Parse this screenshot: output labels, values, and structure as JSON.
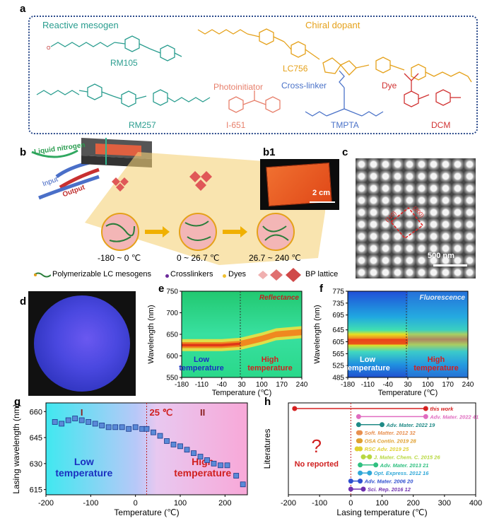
{
  "panels": {
    "a": "a",
    "b": "b",
    "b1": "b1",
    "c": "c",
    "d": "d",
    "e": "e",
    "f": "f",
    "g": "g",
    "h": "h"
  },
  "panel_a": {
    "group_reactive": "Reactive mesogen",
    "group_chiral": "Chiral dopant",
    "group_photo": "Photoinitiator",
    "group_cross": "Cross-linker",
    "group_dye": "Dye",
    "rm105": "RM105",
    "lc756": "LC756",
    "rm257": "RM257",
    "i651": "I-651",
    "tmpta": "TMPTA",
    "dcm": "DCM",
    "colors": {
      "teal": "#2a9d8f",
      "orange": "#e5a11a",
      "salmon": "#e77f6b",
      "blue": "#4a72c8",
      "red": "#d13232"
    }
  },
  "panel_b": {
    "liquid_nitrogen": "Liquid nitrogen",
    "input": "Input",
    "output": "Output",
    "t1": "-180 ~ 0 ℃",
    "t2": "0 ~ 26.7 ℃",
    "t3": "26.7 ~ 240 ℃",
    "legend_mesogens": "Polymerizable LC mesogens",
    "legend_crosslinkers": "Crosslinkers",
    "legend_dyes": "Dyes",
    "legend_bp": "BP lattice"
  },
  "panel_b1": {
    "scale": "2 cm"
  },
  "panel_c": {
    "scale": "500 nm",
    "labels": [
      "(110)",
      "(200)"
    ]
  },
  "chart_data": [
    {
      "panel": "e",
      "type": "heatmap",
      "title": "Reflectance",
      "xlabel": "Temperature (℃)",
      "ylabel": "Wavelength (nm)",
      "xlim": [
        -180,
        240
      ],
      "ylim": [
        550,
        750
      ],
      "xticks": [
        "-180",
        "-110",
        "-40",
        "30",
        "100",
        "170",
        "240"
      ],
      "yticks": [
        "550",
        "600",
        "650",
        "700",
        "750"
      ],
      "low_label": "Low\ntemperature",
      "high_label": "High\ntemperature",
      "divider_x": 25,
      "peak": [
        {
          "x": -180,
          "y": 625
        },
        {
          "x": -40,
          "y": 625
        },
        {
          "x": 25,
          "y": 628
        },
        {
          "x": 100,
          "y": 640
        },
        {
          "x": 150,
          "y": 650
        },
        {
          "x": 240,
          "y": 655
        }
      ]
    },
    {
      "panel": "f",
      "type": "heatmap",
      "title": "Fluorescence",
      "xlabel": "Temperature (℃)",
      "ylabel": "Wavelength (nm)",
      "xlim": [
        -180,
        240
      ],
      "ylim": [
        485,
        775
      ],
      "xticks": [
        "-180",
        "-110",
        "-40",
        "30",
        "100",
        "170",
        "240"
      ],
      "yticks": [
        "485",
        "525",
        "565",
        "605",
        "645",
        "695",
        "735",
        "775"
      ],
      "low_label": "Low\ntemperature",
      "high_label": "High\ntemperature",
      "divider_x": 25,
      "peak_y": 605
    },
    {
      "panel": "g",
      "type": "scatter",
      "xlabel": "Temperature (℃)",
      "ylabel": "Lasing wavelength (nm)",
      "xlim": [
        -200,
        250
      ],
      "ylim": [
        612,
        665
      ],
      "xticks": [
        -200,
        -100,
        0,
        100,
        200
      ],
      "yticks": [
        615,
        630,
        645,
        660
      ],
      "region_I": "I",
      "region_II": "II",
      "divider_label": "25 ℃",
      "divider_x": 25,
      "low_label": "Low\ntemperature",
      "high_label": "High\ntemperature",
      "x": [
        -180,
        -165,
        -150,
        -135,
        -120,
        -105,
        -90,
        -75,
        -60,
        -45,
        -30,
        -15,
        0,
        15,
        25,
        40,
        55,
        70,
        85,
        100,
        115,
        130,
        145,
        160,
        175,
        190,
        205,
        225,
        240
      ],
      "y": [
        654,
        653,
        655,
        656,
        655,
        654,
        653,
        652,
        651,
        651,
        651,
        650,
        651,
        650,
        650,
        648,
        646,
        643,
        641,
        640,
        638,
        636,
        634,
        632,
        630,
        629,
        629,
        623,
        618
      ]
    },
    {
      "panel": "h",
      "type": "scatter",
      "xlabel": "Lasing temperature (℃)",
      "ylabel": "Literatures",
      "xlim": [
        -200,
        400
      ],
      "xticks": [
        -200,
        -100,
        0,
        100,
        200,
        300,
        400
      ],
      "question_mark": "?",
      "no_reported": "No reported",
      "series": [
        {
          "name": "this work",
          "range": [
            -180,
            240
          ],
          "color": "#d62020"
        },
        {
          "name": "Adv. Mater. 2022",
          "ref": "41",
          "range": [
            25,
            240
          ],
          "color": "#e06cc0"
        },
        {
          "name": "Adv. Mater. 2022",
          "ref": "19",
          "range": [
            25,
            100
          ],
          "color": "#1f8a86"
        },
        {
          "name": "Soft. Matter. 2012",
          "ref": "32",
          "range": [
            25,
            30
          ],
          "color": "#e89050"
        },
        {
          "name": "OSA Contin. 2019",
          "ref": "28",
          "range": [
            25,
            30
          ],
          "color": "#e0a030"
        },
        {
          "name": "RSC Adv. 2019",
          "ref": "25",
          "range": [
            20,
            30
          ],
          "color": "#e0d030"
        },
        {
          "name": "J. Mater. Chem. C. 2015",
          "ref": "26",
          "range": [
            40,
            60
          ],
          "color": "#b8d840"
        },
        {
          "name": "Adv. Mater. 2013",
          "ref": "21",
          "range": [
            30,
            80
          ],
          "color": "#30c080"
        },
        {
          "name": "Opt. Express. 2012",
          "ref": "16",
          "range": [
            30,
            60
          ],
          "color": "#30a8d8"
        },
        {
          "name": "Adv. Mater. 2006",
          "ref": "20",
          "range": [
            0,
            30
          ],
          "color": "#3050d0"
        },
        {
          "name": "Sci. Rep. 2016",
          "ref": "12",
          "range": [
            0,
            40
          ],
          "color": "#7030b0"
        }
      ]
    }
  ]
}
